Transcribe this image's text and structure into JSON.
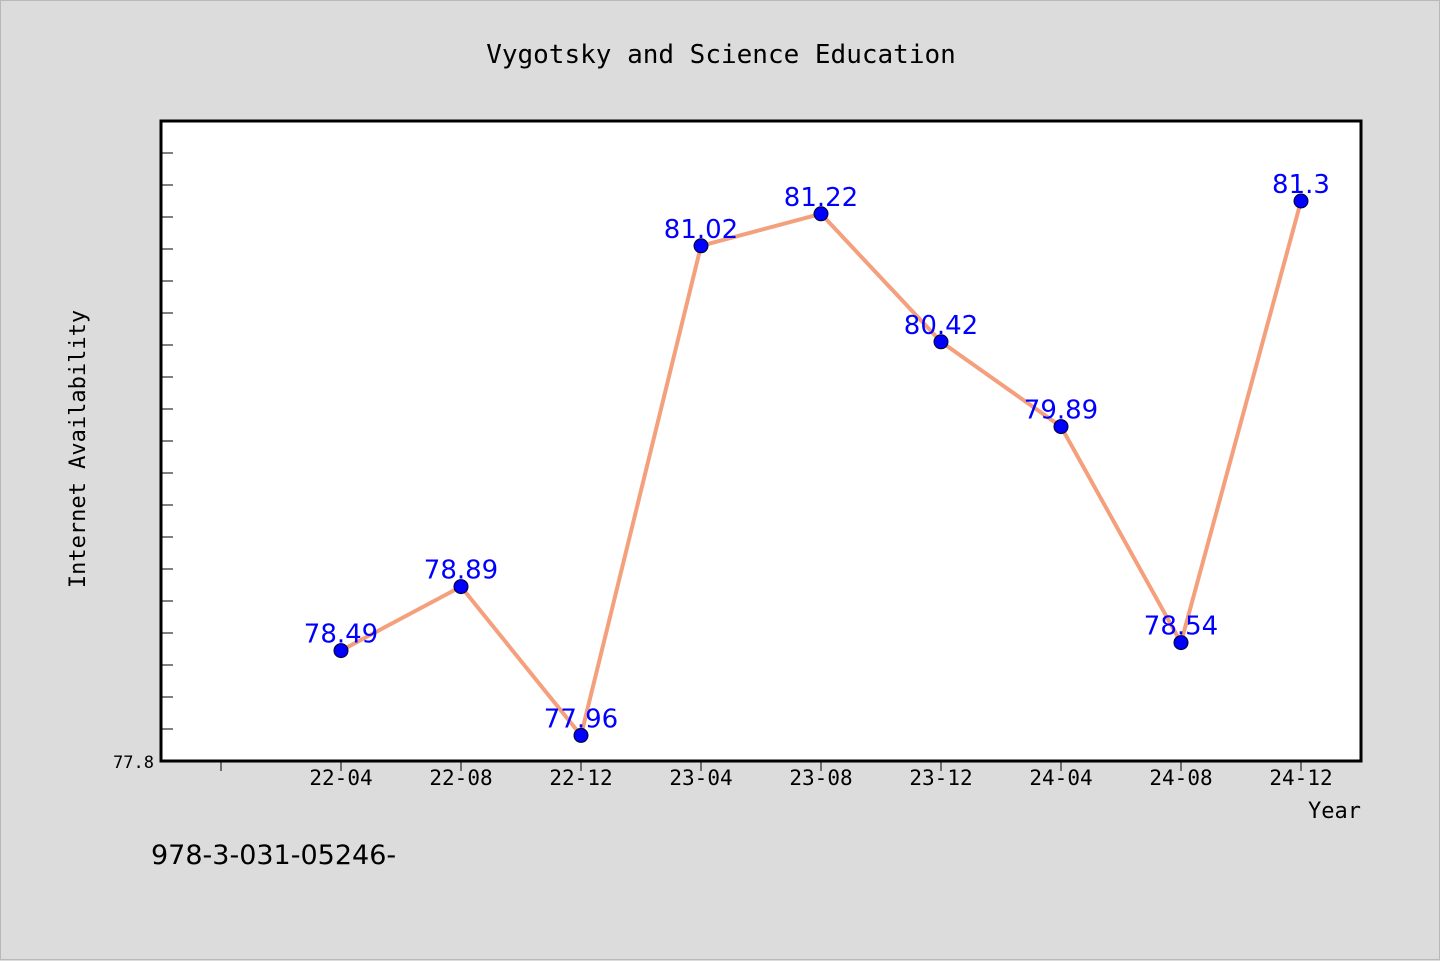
{
  "chart_data": {
    "type": "line",
    "title": "Vygotsky and Science Education",
    "xlabel": "Year",
    "ylabel": "Internet Availability",
    "categories": [
      "22-04",
      "22-08",
      "22-12",
      "23-04",
      "23-08",
      "23-12",
      "24-04",
      "24-08",
      "24-12"
    ],
    "values": [
      78.49,
      78.89,
      77.96,
      81.02,
      81.22,
      80.42,
      79.89,
      78.54,
      81.3
    ],
    "data_labels": [
      "78.49",
      "78.89",
      "77.96",
      "81.02",
      "81.22",
      "80.42",
      "79.89",
      "78.54",
      "81.3"
    ],
    "ylim": [
      77.8,
      81.8
    ],
    "y_tick_labels": [
      "77.8"
    ],
    "grid": false,
    "legend": "none",
    "colors": {
      "line": "#f4a07c",
      "marker": "#0000ff",
      "data_label": "#0000ff",
      "plot_background": "#ffffff",
      "figure_background": "#dcdcdc"
    }
  },
  "footer": {
    "note": "978-3-031-05246-"
  }
}
